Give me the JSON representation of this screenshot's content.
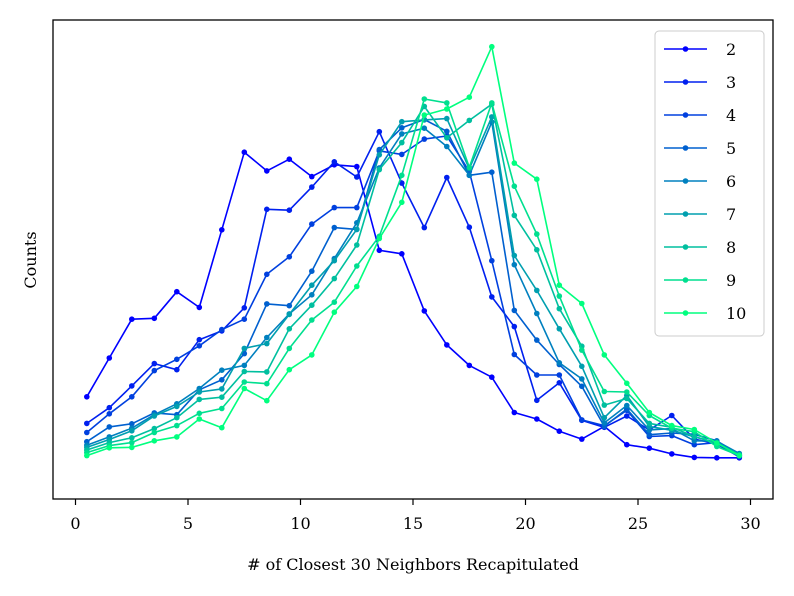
{
  "chart_data": {
    "type": "line",
    "title": "",
    "xlabel": "# of Closest 30 Neighbors Recapitulated",
    "ylabel": "Counts",
    "xlim": [
      -1,
      31
    ],
    "ylim": [
      0,
      1
    ],
    "xticks": [
      0,
      5,
      10,
      15,
      20,
      25,
      30
    ],
    "yticks": [],
    "grid": false,
    "legend_position": "top-right",
    "x": [
      0.5,
      1.5,
      2.5,
      3.5,
      4.5,
      5.5,
      6.5,
      7.5,
      8.5,
      9.5,
      10.5,
      11.5,
      12.5,
      13.5,
      14.5,
      15.5,
      16.5,
      17.5,
      18.5,
      19.5,
      20.5,
      21.5,
      22.5,
      23.5,
      24.5,
      25.5,
      26.5,
      27.5,
      28.5,
      29.5
    ],
    "series": [
      {
        "name": "2",
        "color": "#0000ff",
        "values": [
          0.184,
          0.273,
          0.362,
          0.364,
          0.425,
          0.389,
          0.567,
          0.745,
          0.702,
          0.729,
          0.689,
          0.716,
          0.712,
          0.52,
          0.512,
          0.381,
          0.303,
          0.256,
          0.229,
          0.148,
          0.133,
          0.105,
          0.087,
          0.116,
          0.074,
          0.066,
          0.053,
          0.045,
          0.044,
          0.044
        ]
      },
      {
        "name": "3",
        "color": "#0020ef",
        "values": [
          0.123,
          0.159,
          0.209,
          0.26,
          0.246,
          0.315,
          0.335,
          0.388,
          0.614,
          0.612,
          0.665,
          0.723,
          0.688,
          0.792,
          0.674,
          0.572,
          0.687,
          0.573,
          0.413,
          0.345,
          0.176,
          0.216,
          0.13,
          0.114,
          0.14,
          0.108,
          0.141,
          0.087,
          0.076,
          0.046
        ]
      },
      {
        "name": "4",
        "color": "#0040df",
        "values": [
          0.102,
          0.145,
          0.184,
          0.244,
          0.27,
          0.301,
          0.338,
          0.362,
          0.465,
          0.505,
          0.58,
          0.618,
          0.618,
          0.748,
          0.74,
          0.775,
          0.782,
          0.701,
          0.496,
          0.281,
          0.234,
          0.234,
          0.131,
          0.118,
          0.153,
          0.093,
          0.095,
          0.074,
          0.079,
          0.047
        ]
      },
      {
        "name": "5",
        "color": "#0060cf",
        "values": [
          0.081,
          0.115,
          0.122,
          0.147,
          0.143,
          0.2,
          0.223,
          0.283,
          0.397,
          0.393,
          0.472,
          0.572,
          0.568,
          0.751,
          0.801,
          0.82,
          0.793,
          0.692,
          0.699,
          0.382,
          0.314,
          0.258,
          0.208,
          0.116,
          0.156,
          0.097,
          0.101,
          0.098,
          0.083,
          0.05
        ]
      },
      {
        "name": "6",
        "color": "#0080bf",
        "values": [
          0.073,
          0.092,
          0.112,
          0.143,
          0.168,
          0.203,
          0.245,
          0.256,
          0.32,
          0.374,
          0.418,
          0.501,
          0.583,
          0.709,
          0.787,
          0.8,
          0.758,
          0.692,
          0.814,
          0.487,
          0.375,
          0.262,
          0.225,
          0.124,
          0.164,
          0.108,
          0.111,
          0.083,
          0.082,
          0.054
        ]
      },
      {
        "name": "7",
        "color": "#009faf",
        "values": [
          0.068,
          0.086,
          0.106,
          0.14,
          0.162,
          0.195,
          0.202,
          0.295,
          0.306,
          0.373,
          0.44,
          0.496,
          0.568,
          0.739,
          0.815,
          0.819,
          0.822,
          0.707,
          0.826,
          0.508,
          0.428,
          0.34,
          0.254,
          0.136,
          0.187,
          0.116,
          0.107,
          0.092,
          0.079,
          0.051
        ]
      },
      {
        "name": "8",
        "color": "#00bf9f",
        "values": [
          0.062,
          0.079,
          0.09,
          0.111,
          0.136,
          0.178,
          0.183,
          0.242,
          0.241,
          0.34,
          0.394,
          0.455,
          0.532,
          0.705,
          0.767,
          0.85,
          0.778,
          0.818,
          0.855,
          0.6,
          0.521,
          0.386,
          0.3,
          0.165,
          0.18,
          0.123,
          0.114,
          0.093,
          0.077,
          0.051
        ]
      },
      {
        "name": "9",
        "color": "#00df8f",
        "values": [
          0.056,
          0.072,
          0.079,
          0.102,
          0.118,
          0.146,
          0.157,
          0.218,
          0.214,
          0.295,
          0.36,
          0.401,
          0.484,
          0.552,
          0.692,
          0.867,
          0.858,
          0.71,
          0.858,
          0.667,
          0.557,
          0.415,
          0.291,
          0.196,
          0.195,
          0.141,
          0.112,
          0.104,
          0.07,
          0.049
        ]
      },
      {
        "name": "10",
        "color": "#00ff7f",
        "values": [
          0.049,
          0.067,
          0.068,
          0.083,
          0.092,
          0.133,
          0.113,
          0.203,
          0.175,
          0.246,
          0.28,
          0.378,
          0.437,
          0.547,
          0.63,
          0.83,
          0.844,
          0.871,
          0.987,
          0.72,
          0.683,
          0.44,
          0.398,
          0.28,
          0.215,
          0.148,
          0.118,
          0.109,
          0.078,
          0.049
        ]
      }
    ]
  }
}
